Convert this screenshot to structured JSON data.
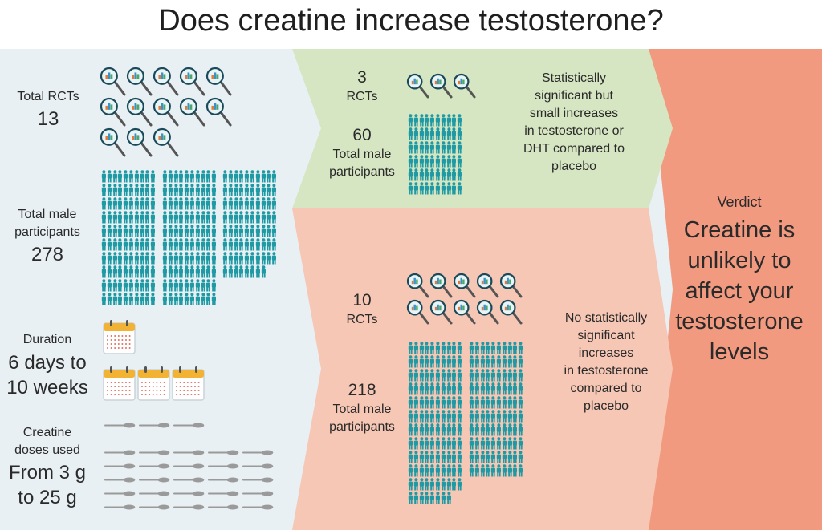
{
  "title": "Does creatine increase testosterone?",
  "colors": {
    "left_panel": "#e8f0f3",
    "green_panel": "#d7e6c2",
    "pink_panel": "#f6c7b5",
    "verdict_panel": "#f29a80",
    "person": "#1f9aa5",
    "magnifier": "#1a4a5a",
    "calendar_top": "#f2b233",
    "spoon": "#9a9a9a"
  },
  "summary": {
    "rcts_label": "Total RCTs",
    "rcts_value": "13",
    "participants_label_line1": "Total male",
    "participants_label_line2": "participants",
    "participants_value": "278",
    "duration_label": "Duration",
    "duration_value_line1": "6 days to",
    "duration_value_line2": "10 weeks",
    "doses_label_line1": "Creatine",
    "doses_label_line2": "doses used",
    "doses_value_line1": "From 3 g",
    "doses_value_line2": "to 25 g",
    "magnifier_icons": 13,
    "person_icons": 278,
    "calendar_icons": 4,
    "spoon_icons": 28
  },
  "positive_branch": {
    "rcts_value": "3",
    "rcts_label": "RCTs",
    "participants_value": "60",
    "participants_label_line1": "Total male",
    "participants_label_line2": "participants",
    "result_lines": [
      "Statistically",
      "significant but",
      "small increases",
      "in testosterone or",
      "DHT compared to",
      "placebo"
    ],
    "magnifier_icons": 3,
    "person_icons": 60
  },
  "negative_branch": {
    "rcts_value": "10",
    "rcts_label": "RCTs",
    "participants_value": "218",
    "participants_label_line1": "Total male",
    "participants_label_line2": "participants",
    "result_lines": [
      "No statistically",
      "significant",
      "increases",
      "in testosterone",
      "compared to",
      "placebo"
    ],
    "magnifier_icons": 10,
    "person_icons": 218
  },
  "verdict": {
    "label": "Verdict",
    "lines": [
      "Creatine is",
      "unlikely to",
      "affect your",
      "testosterone",
      "levels"
    ]
  }
}
